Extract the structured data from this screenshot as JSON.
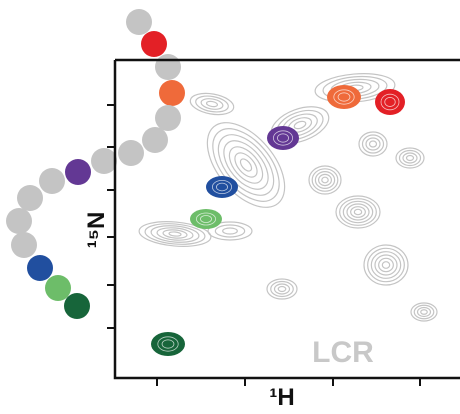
{
  "axes": {
    "x_label": "¹H",
    "y_label": "¹⁵N"
  },
  "annotation": "LCR"
}
